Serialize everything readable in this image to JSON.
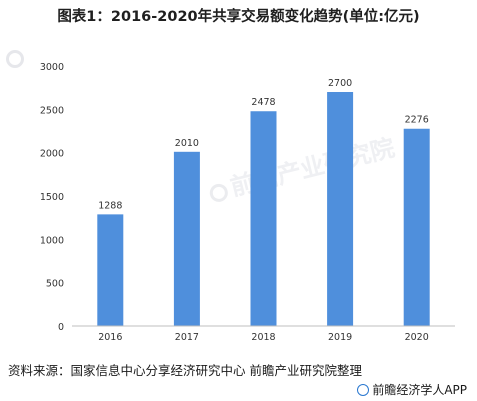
{
  "watermark": {
    "text": "前瞻产业研究院"
  },
  "source_note": "资料来源：国家信息中心分享经济研究中心 前瞻产业研究院整理",
  "brand_label": "前瞻经济学人APP",
  "colors": {
    "bar": "#4f8fdc",
    "axis": "#bfbfbf",
    "text": "#333333"
  },
  "chart_data": {
    "type": "bar",
    "title": "图表1：2016-2020年共享交易额变化趋势(单位:亿元)",
    "categories": [
      "2016",
      "2017",
      "2018",
      "2019",
      "2020"
    ],
    "values": [
      1288,
      2010,
      2478,
      2700,
      2276
    ],
    "value_labels": [
      "1288",
      "2010",
      "2478",
      "2700",
      "2276"
    ],
    "ylim": [
      0,
      3000
    ],
    "yticks": [
      0,
      500,
      1000,
      1500,
      2000,
      2500,
      3000
    ],
    "ytick_labels": [
      "0",
      "500",
      "1000",
      "1500",
      "2000",
      "2500",
      "3000"
    ],
    "grid": false,
    "legend": "none"
  }
}
